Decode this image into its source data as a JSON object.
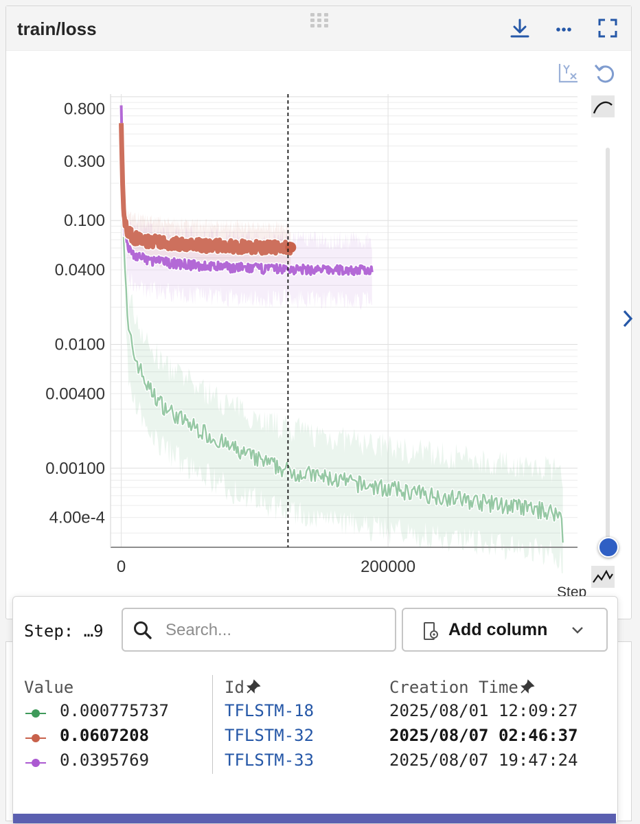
{
  "panel": {
    "title": "train/loss",
    "icons": [
      "drag-handle-icon",
      "download-icon",
      "more-options-icon",
      "fullscreen-icon",
      "axis-scale-icon",
      "reset-zoom-icon",
      "smoothing-curve-icon",
      "expand-arrow-icon",
      "step-line-icon"
    ],
    "x_axis_label": "Step"
  },
  "chart_data": {
    "type": "line",
    "y_scale": "log",
    "xlim": [
      -8000,
      342000
    ],
    "ylim": [
      0.00023,
      1.05
    ],
    "grid": true,
    "y_tick_labels": [
      {
        "value": 0.8,
        "label": "0.800"
      },
      {
        "value": 0.3,
        "label": "0.300"
      },
      {
        "value": 0.1,
        "label": "0.100"
      },
      {
        "value": 0.04,
        "label": "0.0400"
      },
      {
        "value": 0.01,
        "label": "0.0100"
      },
      {
        "value": 0.004,
        "label": "0.00400"
      },
      {
        "value": 0.001,
        "label": "0.00100"
      },
      {
        "value": 0.0004,
        "label": "4.00e-4"
      }
    ],
    "x_tick_labels": [
      {
        "value": 0,
        "label": "0"
      },
      {
        "value": 200000,
        "label": "200000"
      }
    ],
    "cursor_step": 125000,
    "series": [
      {
        "name": "TFLSTM-18",
        "color": "#3f9a5a",
        "x": [
          0,
          2000,
          5000,
          10000,
          20000,
          30000,
          40000,
          50000,
          60000,
          80000,
          100000,
          125000,
          150000,
          175000,
          200000,
          225000,
          250000,
          275000,
          300000,
          325000,
          330000,
          331000
        ],
        "y": [
          0.6,
          0.06,
          0.013,
          0.008,
          0.0045,
          0.0033,
          0.0027,
          0.0023,
          0.002,
          0.0015,
          0.0012,
          0.00095,
          0.00085,
          0.00075,
          0.00068,
          0.00062,
          0.00057,
          0.00052,
          0.00048,
          0.00044,
          0.0004,
          0.00028
        ]
      },
      {
        "name": "TFLSTM-32",
        "color": "#c8614b",
        "x": [
          0,
          1000,
          2000,
          5000,
          10000,
          20000,
          40000,
          60000,
          80000,
          100000,
          120000,
          127000
        ],
        "y": [
          0.62,
          0.2,
          0.11,
          0.08,
          0.072,
          0.068,
          0.065,
          0.063,
          0.062,
          0.061,
          0.0607,
          0.0607
        ]
      },
      {
        "name": "TFLSTM-33",
        "color": "#ab59d1",
        "x": [
          0,
          1000,
          2000,
          5000,
          10000,
          20000,
          40000,
          60000,
          80000,
          100000,
          120000,
          140000,
          160000,
          180000,
          188000
        ],
        "y": [
          0.85,
          0.25,
          0.09,
          0.06,
          0.052,
          0.048,
          0.045,
          0.043,
          0.042,
          0.041,
          0.0405,
          0.04,
          0.0398,
          0.0396,
          0.0396
        ]
      }
    ]
  },
  "tooltip": {
    "step_text": "Step: …9",
    "search_placeholder": "Search...",
    "add_column_label": "Add column",
    "columns": {
      "value": "Value",
      "id": "Id",
      "creation_time": "Creation Time"
    },
    "rows": [
      {
        "color": "#3f9a5a",
        "value": "0.000775737",
        "id": "TFLSTM-18",
        "creation_time": "2025/08/01 12:09:27",
        "bold": false
      },
      {
        "color": "#c8614b",
        "value": "0.0607208",
        "id": "TFLSTM-32",
        "creation_time": "2025/08/07 02:46:37",
        "bold": true
      },
      {
        "color": "#ab59d1",
        "value": "0.0395769",
        "id": "TFLSTM-33",
        "creation_time": "2025/08/07 19:47:24",
        "bold": false
      }
    ]
  }
}
